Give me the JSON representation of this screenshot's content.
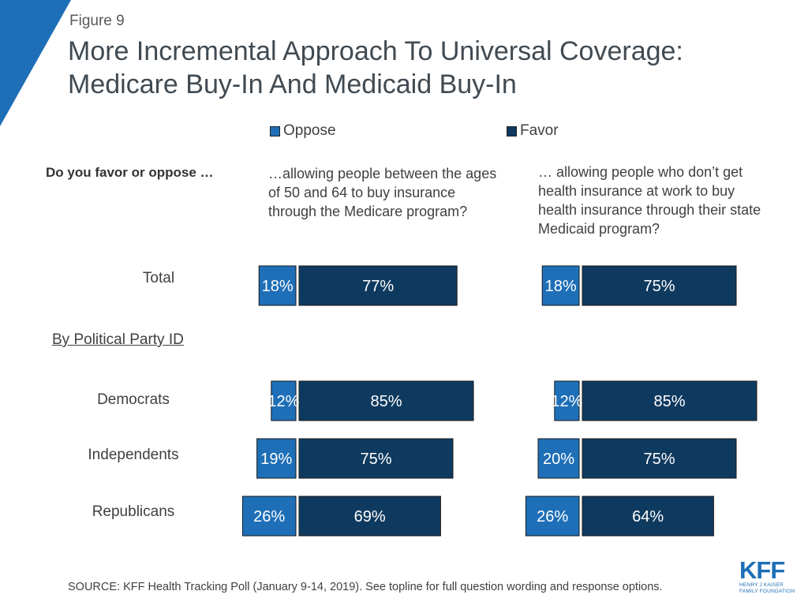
{
  "figure_label": "Figure 9",
  "title_line1": "More Incremental Approach To Universal Coverage:",
  "title_line2": "Medicare Buy-In And Medicaid Buy-In",
  "legend": {
    "oppose": {
      "label": "Oppose",
      "color": "#1e6fb7"
    },
    "favor": {
      "label": "Favor",
      "color": "#0f3a5f"
    }
  },
  "question_prompt": "Do you favor or oppose …",
  "questions": [
    {
      "text": "…allowing people between the ages of 50 and 64 to buy insurance through the Medicare program?"
    },
    {
      "text": "… allowing people who don’t get health insurance at work to buy health insurance through their state Medicaid program?"
    }
  ],
  "rows": {
    "total": "Total",
    "party_header": "By Political Party ID",
    "democrats": "Democrats",
    "independents": "Independents",
    "republicans": "Republicans"
  },
  "chart_data": {
    "type": "bar",
    "orientation": "horizontal",
    "stacked": "diverging",
    "categories": [
      "Total",
      "Democrats",
      "Independents",
      "Republicans"
    ],
    "panels": [
      {
        "name": "Medicare buy-in (ages 50-64)",
        "series": [
          {
            "name": "Oppose",
            "values": [
              18,
              12,
              19,
              26
            ]
          },
          {
            "name": "Favor",
            "values": [
              77,
              85,
              75,
              69
            ]
          }
        ]
      },
      {
        "name": "Medicaid buy-in",
        "series": [
          {
            "name": "Oppose",
            "values": [
              18,
              12,
              20,
              26
            ]
          },
          {
            "name": "Favor",
            "values": [
              75,
              85,
              75,
              64
            ]
          }
        ]
      }
    ],
    "value_suffix": "%",
    "legend": [
      "Oppose",
      "Favor"
    ]
  },
  "source": "SOURCE: KFF Health Tracking Poll (January 9-14, 2019). See topline for full question wording and response options.",
  "logo": {
    "mark": "KFF",
    "sub1": "HENRY J KAISER",
    "sub2": "FAMILY FOUNDATION"
  }
}
